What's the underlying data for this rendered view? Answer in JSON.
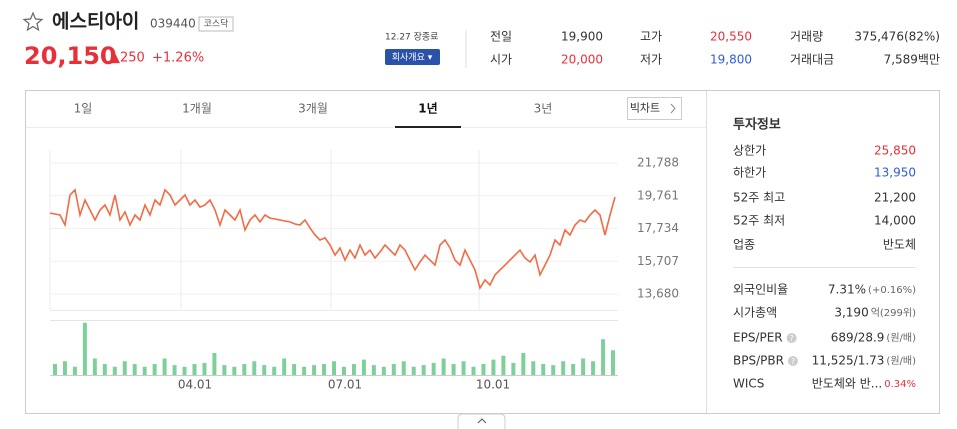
{
  "header": {
    "name": "에스티아이",
    "code": "039440",
    "market": "코스닥",
    "price": "20,150",
    "change": "▲250",
    "change_pct": "+1.26%",
    "status": "12.27 장종료",
    "company_button": "회사개요 ▾"
  },
  "summary": [
    {
      "label": "전일",
      "value": "19,900"
    },
    {
      "label": "고가",
      "value": "20,550",
      "color": "#e8303a"
    },
    {
      "label": "거래량",
      "value": "375,476(82%)"
    },
    {
      "label": "시가",
      "value": "20,000",
      "color": "#e8303a"
    },
    {
      "label": "저가",
      "value": "19,800",
      "color": "#2d5ed7"
    },
    {
      "label": "거래대금",
      "value": "7,589백만"
    }
  ],
  "chart": {
    "tabs": [
      "1일",
      "1개월",
      "3개월",
      "1년",
      "3년"
    ],
    "active_tab": 3,
    "big_chart": "빅차트",
    "color": "#f26b45",
    "volume_color": "#7ed09a",
    "price": {
      "values": [
        18690,
        18630,
        18570,
        17950,
        19810,
        20120,
        18570,
        19500,
        18880,
        18260,
        18880,
        19190,
        18570,
        19810,
        18260,
        18760,
        17950,
        18570,
        18260,
        19190,
        18570,
        19500,
        19190,
        20120,
        19810,
        19190,
        19500,
        19810,
        19190,
        19500,
        19060,
        19190,
        19500,
        18880,
        17950,
        18880,
        18570,
        18260,
        18880,
        17640,
        18260,
        18570,
        18140,
        18570,
        18380,
        18320,
        18260,
        18200,
        18140,
        18010,
        17950,
        18260,
        17770,
        17330,
        17020,
        17150,
        16710,
        16090,
        16530,
        15780,
        16400,
        15910,
        16710,
        16090,
        16400,
        15910,
        16280,
        16710,
        16400,
        16090,
        16710,
        16400,
        15780,
        15170,
        15660,
        16090,
        15780,
        15470,
        16710,
        17020,
        16530,
        15780,
        15470,
        16400,
        15780,
        15170,
        14050,
        14550,
        14240,
        14860,
        15170,
        15470,
        15780,
        16090,
        16400,
        15910,
        15660,
        16090,
        14860,
        15470,
        16090,
        17020,
        16710,
        17640,
        17330,
        17950,
        18260,
        18140,
        18570,
        18880,
        18570,
        17330,
        18570,
        19680
      ],
      "ylim": [
        13680,
        21788
      ],
      "yticks": [
        {
          "value": 21788,
          "label": "21,788"
        },
        {
          "value": 19761,
          "label": "19,761"
        },
        {
          "value": 17734,
          "label": "17,734"
        },
        {
          "value": 15707,
          "label": "15,707"
        },
        {
          "value": 13680,
          "label": "13,680"
        }
      ]
    },
    "volume": {
      "values": [
        20,
        25,
        15,
        95,
        30,
        20,
        15,
        25,
        20,
        15,
        20,
        30,
        18,
        15,
        20,
        22,
        40,
        18,
        15,
        20,
        25,
        18,
        15,
        30,
        20,
        15,
        18,
        20,
        25,
        15,
        20,
        28,
        18,
        15,
        20,
        25,
        15,
        18,
        22,
        30,
        20,
        25,
        15,
        20,
        28,
        35,
        22,
        40,
        25,
        20,
        18,
        25,
        20,
        30,
        25,
        65,
        45
      ],
      "ylim": [
        0,
        100
      ]
    },
    "xlabels": [
      "04.01",
      "07.01",
      "10.01"
    ]
  },
  "info": {
    "title": "투자정보",
    "rows": [
      {
        "label": "상한가",
        "value": "25,850",
        "color": "#e8303a"
      },
      {
        "label": "하한가",
        "value": "13,950",
        "color": "#2d5ed7"
      },
      {
        "label": "52주 최고",
        "value": "21,200"
      },
      {
        "label": "52주 최저",
        "value": "14,000"
      },
      {
        "label": "업종",
        "value": "반도체"
      }
    ],
    "rows2": [
      {
        "label": "외국인비율",
        "value": "7.31%",
        "note": "(+0.16%)"
      },
      {
        "label": "시가총액",
        "value": "3,190",
        "note": "억(299위)"
      },
      {
        "label": "EPS/PER",
        "value": "689/28.9",
        "note": "(원/배)",
        "help": true
      },
      {
        "label": "BPS/PBR",
        "value": "11,525/1.73",
        "note": "(원/배)",
        "help": true
      },
      {
        "label": "WICS",
        "value": "반도체와 반...",
        "note": "0.34%",
        "note_color": "#e8303a"
      }
    ]
  }
}
